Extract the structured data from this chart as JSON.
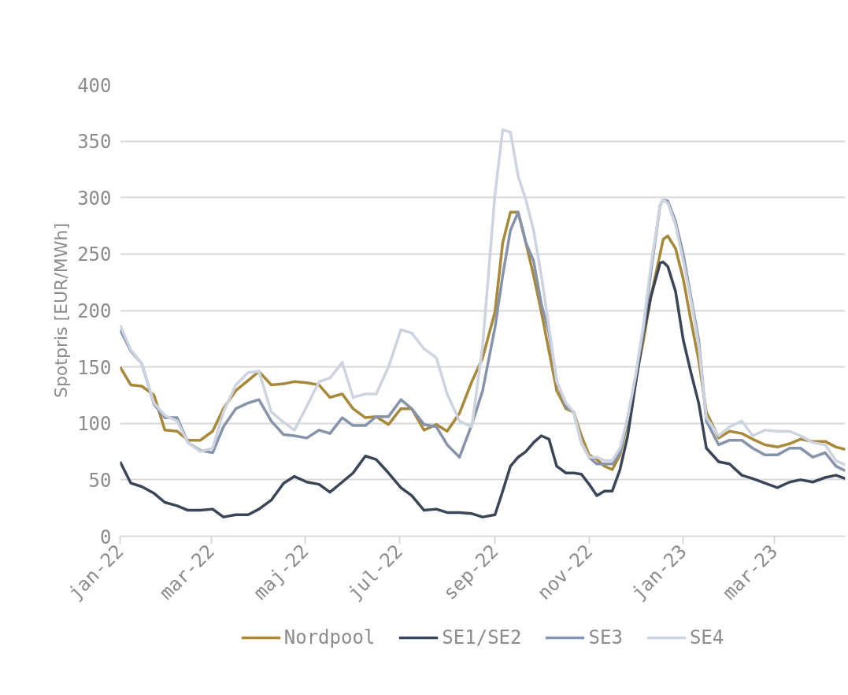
{
  "chart_data": {
    "type": "line",
    "ylabel": "Spotpris [EUR/MWh]",
    "x": [
      "2022-01-01",
      "2022-01-08",
      "2022-01-15",
      "2022-01-23",
      "2022-01-30",
      "2022-02-07",
      "2022-02-14",
      "2022-02-22",
      "2022-03-02",
      "2022-03-09",
      "2022-03-17",
      "2022-03-25",
      "2022-04-01",
      "2022-04-09",
      "2022-04-17",
      "2022-04-24",
      "2022-05-02",
      "2022-05-10",
      "2022-05-17",
      "2022-05-25",
      "2022-06-01",
      "2022-06-09",
      "2022-06-16",
      "2022-06-24",
      "2022-07-02",
      "2022-07-09",
      "2022-07-17",
      "2022-07-25",
      "2022-08-01",
      "2022-08-09",
      "2022-08-17",
      "2022-08-24",
      "2022-09-01",
      "2022-09-06",
      "2022-09-11",
      "2022-09-16",
      "2022-09-21",
      "2022-09-26",
      "2022-10-01",
      "2022-10-06",
      "2022-10-11",
      "2022-10-17",
      "2022-10-22",
      "2022-10-27",
      "2022-11-01",
      "2022-11-06",
      "2022-11-11",
      "2022-11-16",
      "2022-11-21",
      "2022-11-26",
      "2022-12-01",
      "2022-12-06",
      "2022-12-11",
      "2022-12-17",
      "2022-12-19",
      "2022-12-22",
      "2022-12-27",
      "2023-01-01",
      "2023-01-06",
      "2023-01-11",
      "2023-01-16",
      "2023-01-24",
      "2023-01-31",
      "2023-02-08",
      "2023-02-15",
      "2023-02-23",
      "2023-03-03",
      "2023-03-11",
      "2023-03-18",
      "2023-03-26",
      "2023-04-03",
      "2023-04-10",
      "2023-04-16"
    ],
    "series": [
      {
        "name": "Nordpool",
        "color": "#a8893a",
        "values": [
          150,
          134,
          133,
          125,
          94,
          93,
          85,
          85,
          93,
          113,
          129,
          138,
          146,
          134,
          135,
          137,
          136,
          134,
          123,
          126,
          113,
          105,
          106,
          99,
          113,
          113,
          94,
          99,
          93,
          109,
          137,
          158,
          199,
          260,
          287,
          287,
          260,
          231,
          199,
          164,
          129,
          113,
          110,
          89,
          72,
          68,
          62,
          59,
          72,
          102,
          137,
          172,
          212,
          250,
          263,
          266,
          255,
          228,
          191,
          156,
          110,
          87,
          93,
          91,
          86,
          81,
          79,
          82,
          86,
          84,
          84,
          79,
          77
        ]
      },
      {
        "name": "SE1/SE2",
        "color": "#3b4558",
        "values": [
          66,
          47,
          44,
          38,
          30,
          27,
          23,
          23,
          24,
          17,
          19,
          19,
          24,
          32,
          47,
          53,
          48,
          46,
          39,
          48,
          56,
          71,
          68,
          56,
          43,
          36,
          23,
          24,
          21,
          21,
          20,
          17,
          19,
          40,
          62,
          70,
          75,
          83,
          89,
          86,
          62,
          56,
          56,
          55,
          46,
          36,
          40,
          40,
          59,
          89,
          134,
          177,
          212,
          242,
          243,
          239,
          217,
          174,
          145,
          118,
          78,
          66,
          64,
          54,
          51,
          47,
          43,
          48,
          50,
          48,
          52,
          54,
          51
        ]
      },
      {
        "name": "SE3",
        "color": "#8793ab",
        "values": [
          183,
          164,
          153,
          117,
          105,
          105,
          83,
          76,
          74,
          97,
          113,
          118,
          121,
          102,
          90,
          89,
          87,
          94,
          91,
          105,
          98,
          98,
          106,
          106,
          121,
          113,
          99,
          97,
          81,
          70,
          99,
          129,
          185,
          231,
          271,
          287,
          260,
          244,
          206,
          180,
          137,
          115,
          110,
          83,
          70,
          64,
          64,
          64,
          74,
          105,
          140,
          180,
          234,
          293,
          298,
          297,
          279,
          250,
          212,
          174,
          102,
          81,
          85,
          85,
          78,
          72,
          72,
          78,
          78,
          70,
          74,
          62,
          58
        ]
      },
      {
        "name": "SE4",
        "color": "#cdd3df",
        "values": [
          187,
          165,
          153,
          118,
          107,
          102,
          83,
          75,
          78,
          110,
          134,
          145,
          146,
          110,
          101,
          94,
          115,
          137,
          140,
          154,
          123,
          126,
          126,
          150,
          183,
          180,
          166,
          158,
          126,
          102,
          97,
          169,
          303,
          360,
          358,
          319,
          298,
          271,
          231,
          185,
          137,
          118,
          110,
          83,
          70,
          70,
          67,
          67,
          78,
          105,
          142,
          185,
          239,
          293,
          298,
          295,
          276,
          244,
          209,
          169,
          105,
          89,
          97,
          102,
          89,
          94,
          93,
          93,
          89,
          83,
          81,
          67,
          63
        ]
      }
    ],
    "xlim": [
      "2022-01-01",
      "2023-04-16"
    ],
    "xticks": [
      {
        "value": "2022-01-01",
        "label": "jan-22"
      },
      {
        "value": "2022-03-01",
        "label": "mar-22"
      },
      {
        "value": "2022-05-01",
        "label": "maj-22"
      },
      {
        "value": "2022-07-01",
        "label": "jul-22"
      },
      {
        "value": "2022-09-01",
        "label": "sep-22"
      },
      {
        "value": "2022-11-01",
        "label": "nov-22"
      },
      {
        "value": "2023-01-01",
        "label": "jan-23"
      },
      {
        "value": "2023-03-01",
        "label": "mar-23"
      }
    ],
    "ylim": [
      0,
      400
    ],
    "yticks": [
      0,
      50,
      100,
      150,
      200,
      250,
      300,
      350,
      400
    ],
    "grid": "y",
    "legend": "bottom"
  }
}
